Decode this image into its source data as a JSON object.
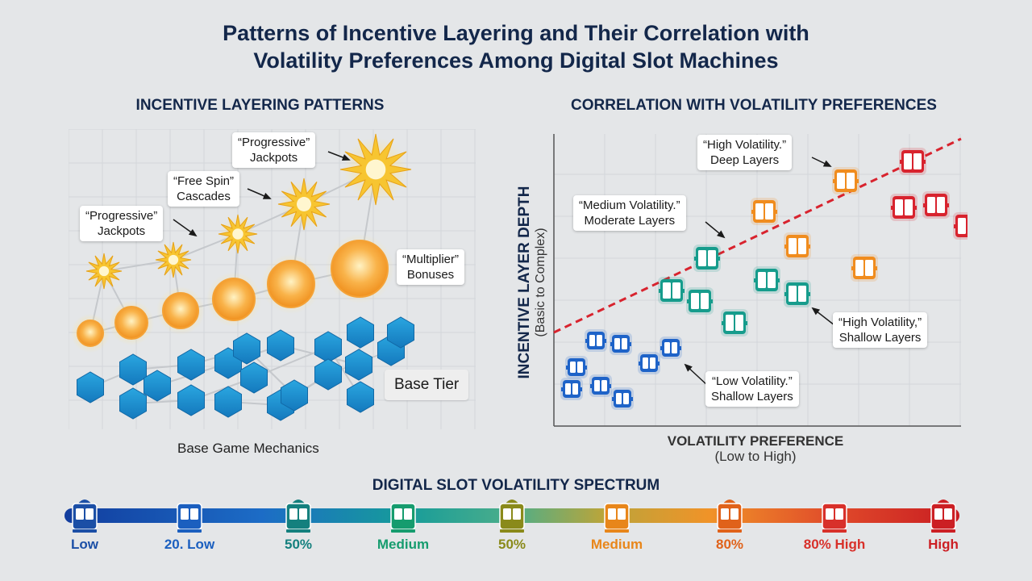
{
  "title": {
    "line1": "Patterns of Incentive Layering and Their Correlation with",
    "line2": "Volatility Preferences Among Digital Slot Machines"
  },
  "left": {
    "heading": "INCENTIVE LAYERING PATTERNS",
    "callouts": {
      "progressive_top": [
        "“Progressive”",
        "Jackpots"
      ],
      "free_spin": [
        "“Free Spin”",
        "Cascades"
      ],
      "progressive_left": [
        "“Progressive”",
        "Jackpots"
      ],
      "multiplier": [
        "“Multiplier”",
        "Bonuses"
      ]
    },
    "base_tier": "Base Tier",
    "caption": "Base Game Mechanics"
  },
  "right": {
    "heading": "CORRELATION WITH VOLATILITY PREFERENCES",
    "ylabel": "INCENTIVE LAYER DEPTH",
    "ylabel_sub": "(Basic to Complex)",
    "xlabel": "VOLATILITY PREFERENCE",
    "xlabel_sub": "(Low to High)",
    "callouts": {
      "high_deep": [
        "“High Volatility.”",
        "Deep Layers"
      ],
      "medium_moderate": [
        "“Medium Volatility.”",
        "Moderate Layers"
      ],
      "high_shallow": [
        "“High Volatility,”",
        "Shallow Layers"
      ],
      "low_shallow": [
        "“Low Volatility.”",
        "Shallow Layers"
      ]
    },
    "colors": {
      "low": "#1e63c8",
      "medium": "#169c8c",
      "orange": "#f08c1e",
      "high": "#d8232e",
      "trend": "#d8232e"
    }
  },
  "spectrum": {
    "heading": "DIGITAL SLOT VOLATILITY SPECTRUM",
    "labels": [
      {
        "text": "Low",
        "color": "#1b4fa6"
      },
      {
        "text": "20. Low",
        "color": "#1b5fbf"
      },
      {
        "text": "50%",
        "color": "#14807e"
      },
      {
        "text": "Medium",
        "color": "#169c6e"
      },
      {
        "text": "50%",
        "color": "#8a8a1a"
      },
      {
        "text": "Medium",
        "color": "#e8861a"
      },
      {
        "text": "80%",
        "color": "#e0621a"
      },
      {
        "text": "80% High",
        "color": "#d8302a"
      },
      {
        "text": "High",
        "color": "#cc1f24"
      }
    ]
  }
}
